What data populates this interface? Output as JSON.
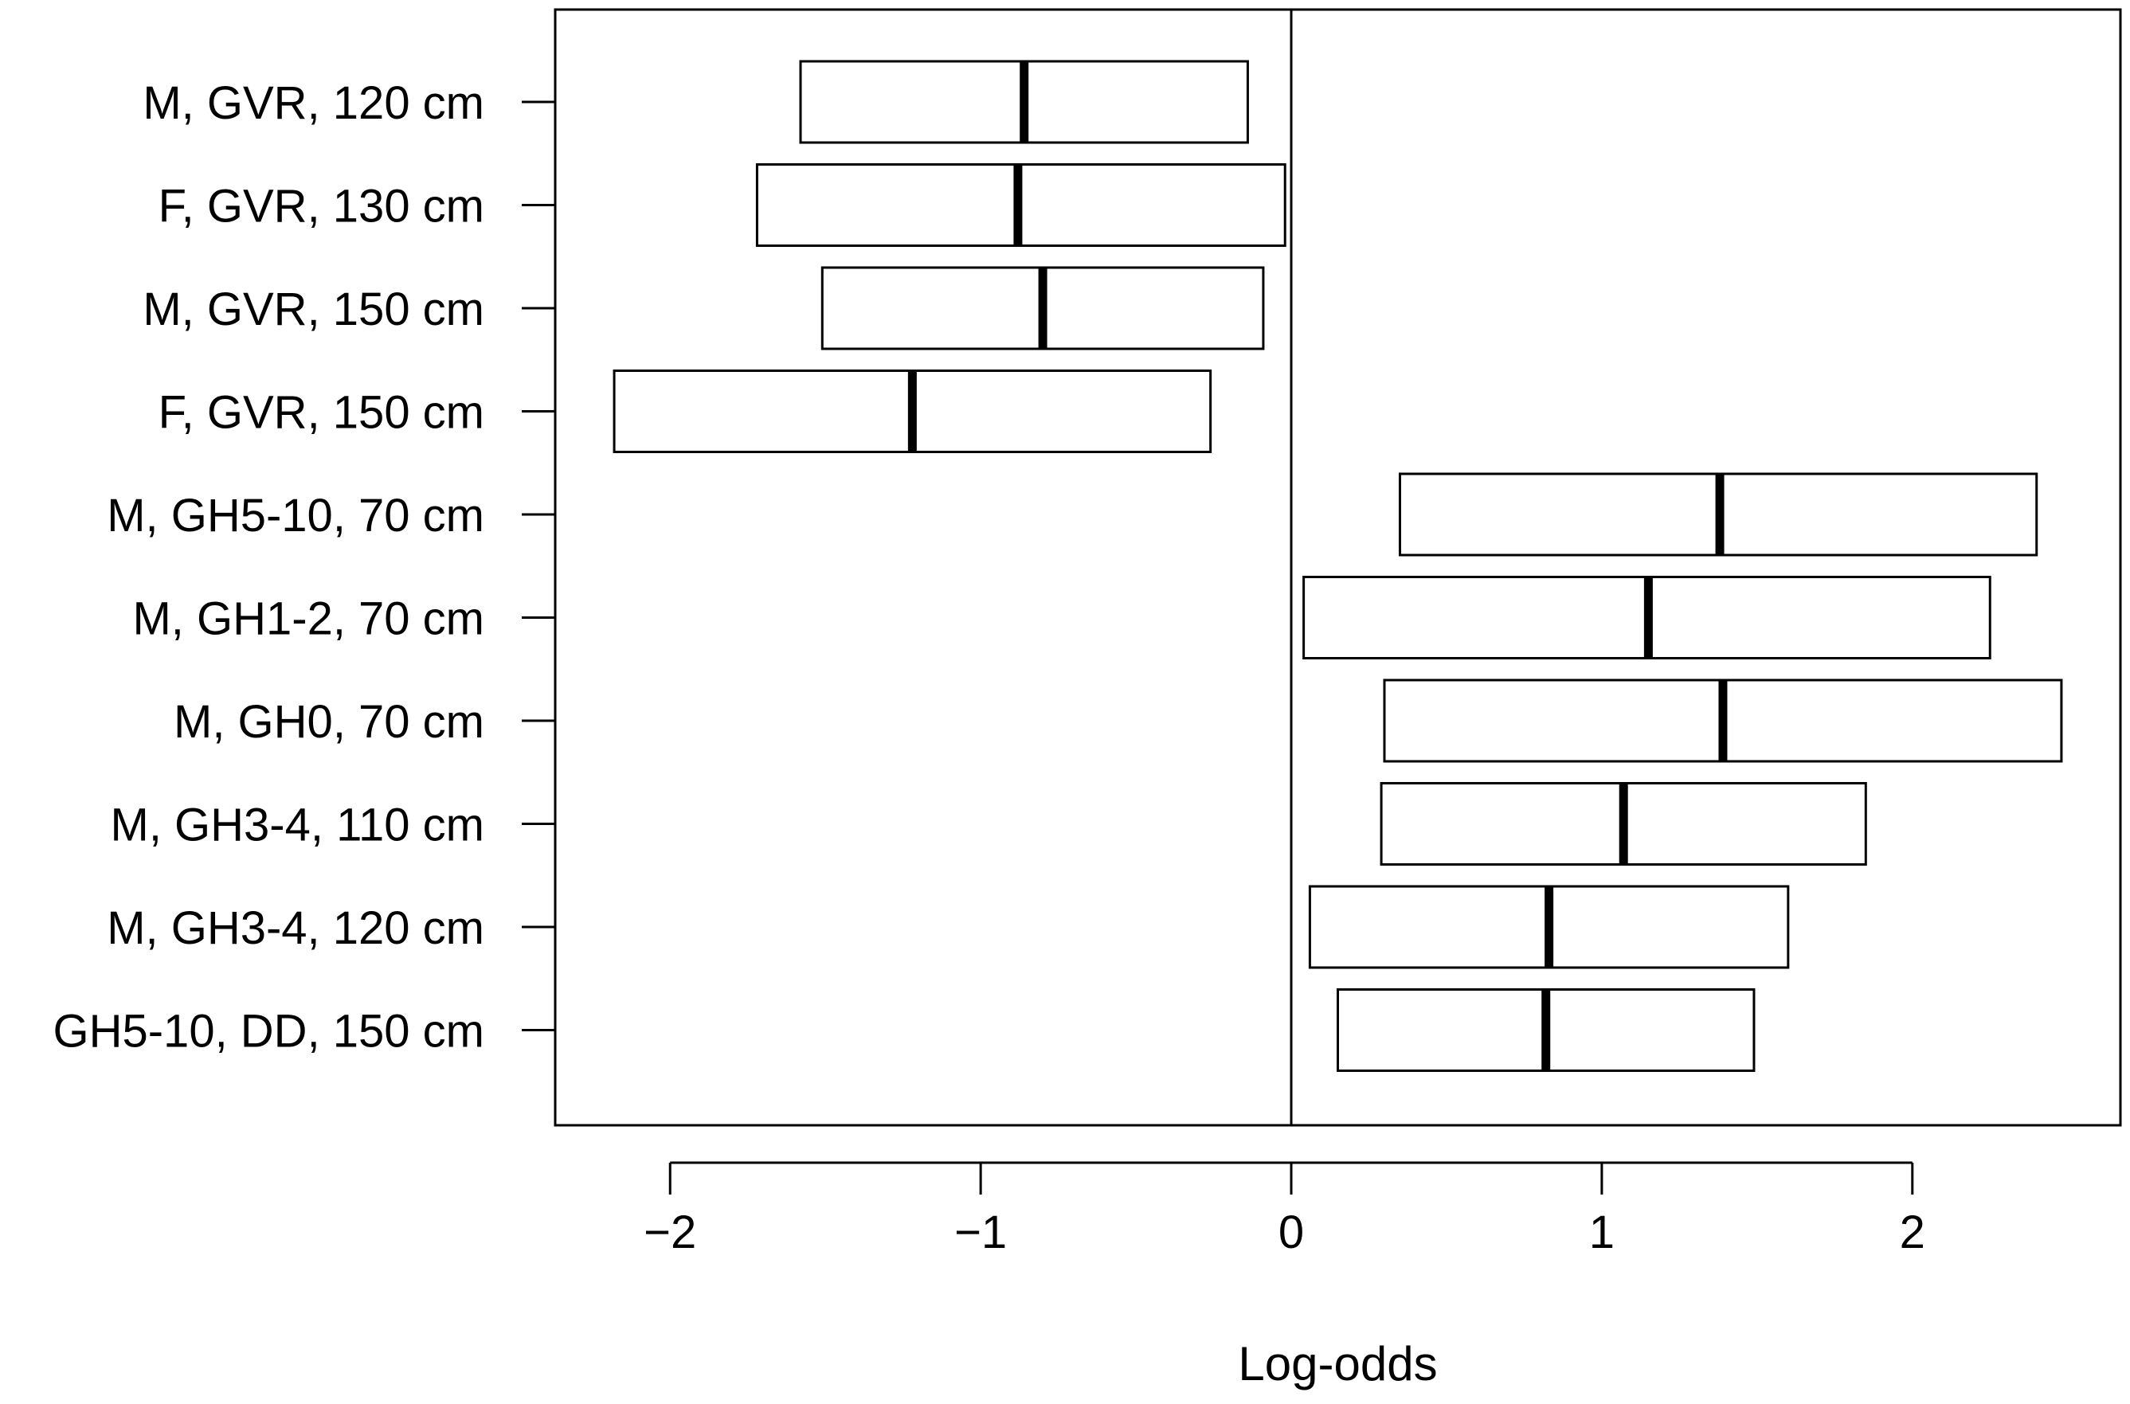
{
  "chart_data": {
    "type": "box",
    "title": "",
    "xlabel": "Log-odds",
    "ylabel": "",
    "xlim": [
      -2.37,
      2.67
    ],
    "grid": false,
    "legend": "none",
    "reference_line_x": 0,
    "x_ticks": [
      -2,
      -1,
      0,
      1,
      2
    ],
    "x_tick_labels": [
      "−2",
      "−1",
      "0",
      "1",
      "2"
    ],
    "categories": [
      "M, GVR, 120 cm",
      "F, GVR, 130 cm",
      "M, GVR, 150 cm",
      "F, GVR, 150 cm",
      "M, GH5-10, 70 cm",
      "M, GH1-2, 70 cm",
      "M, GH0, 70 cm",
      "M, GH3-4, 110 cm",
      "M, GH3-4, 120 cm",
      "GH5-10, DD, 150 cm"
    ],
    "lower": [
      -1.58,
      -1.72,
      -1.51,
      -2.18,
      0.35,
      0.04,
      0.3,
      0.29,
      0.06,
      0.15
    ],
    "median": [
      -0.86,
      -0.88,
      -0.8,
      -1.22,
      1.38,
      1.15,
      1.39,
      1.07,
      0.83,
      0.82
    ],
    "upper": [
      -0.14,
      -0.02,
      -0.09,
      -0.26,
      2.4,
      2.25,
      2.48,
      1.85,
      1.6,
      1.49
    ],
    "colors": {
      "box_stroke": "#000000",
      "box_fill": "#ffffff",
      "median_line": "#000000",
      "axis": "#000000"
    }
  }
}
